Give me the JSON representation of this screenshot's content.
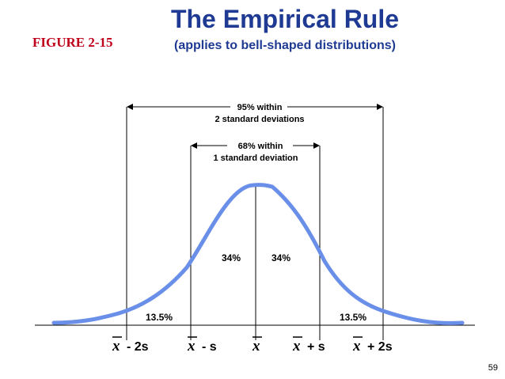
{
  "header": {
    "title": "The Empirical Rule",
    "subtitle": "(applies to bell-shaped distributions)",
    "figure_label": "FIGURE 2-15"
  },
  "annotations": {
    "outer_line1": "95% within",
    "outer_line2": "2 standard deviations",
    "inner_line1": "68% within",
    "inner_line2": "1 standard deviation"
  },
  "regions": {
    "left_inner": "34%",
    "right_inner": "34%",
    "left_tail": "13.5%",
    "right_tail": "13.5%"
  },
  "axis": {
    "xbar_symbol": "x",
    "labels": {
      "minus_2s": "- 2s",
      "minus_s": "- s",
      "plus_s": "+ s",
      "plus_2s": "+ 2s"
    }
  },
  "colors": {
    "curve": "#6a8fe8",
    "title": "#1f3a93",
    "figure_label": "#c0001a"
  },
  "page_number": "59"
}
